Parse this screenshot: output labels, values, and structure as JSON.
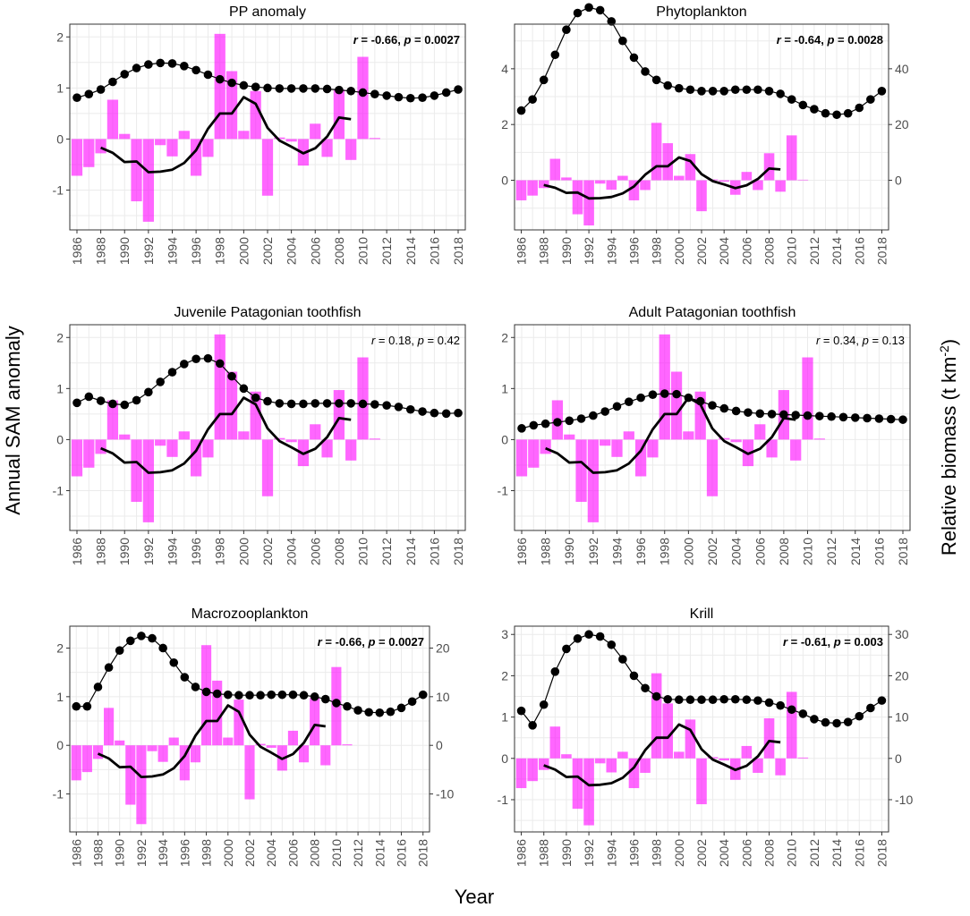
{
  "figure": {
    "y_left_label": "Annual SAM anomaly",
    "y_right_label": "Relative biomass (t km",
    "y_right_label_sup": "-2",
    "y_right_label_end": ")",
    "x_label": "Year"
  },
  "chart_data": [
    {
      "type": "bar",
      "title": "PP anomaly",
      "stat_r": "-0.66",
      "stat_p": "0.0027",
      "stat_bold": true,
      "xlabel": "Year",
      "ylabel": "Annual SAM anomaly",
      "years": [
        1986,
        1987,
        1988,
        1989,
        1990,
        1991,
        1992,
        1993,
        1994,
        1995,
        1996,
        1997,
        1998,
        1999,
        2000,
        2001,
        2002,
        2003,
        2004,
        2005,
        2006,
        2007,
        2008,
        2009,
        2010,
        2011,
        2012,
        2013,
        2014,
        2015,
        2016,
        2017,
        2018
      ],
      "xticks": [
        1986,
        1988,
        1990,
        1992,
        1994,
        1996,
        1998,
        2000,
        2002,
        2004,
        2006,
        2008,
        2010,
        2012,
        2014,
        2016,
        2018
      ],
      "sam_anomaly": [
        -0.72,
        -0.55,
        -0.28,
        0.77,
        0.1,
        -1.22,
        -1.62,
        -0.12,
        -0.34,
        0.16,
        -0.72,
        -0.35,
        2.06,
        1.33,
        0.16,
        0.94,
        -1.11,
        0.03,
        -0.05,
        -0.52,
        0.3,
        -0.35,
        0.97,
        -0.41,
        1.61,
        0.02
      ],
      "sam_smooth_years": [
        1988,
        1989,
        1990,
        1991,
        1992,
        1993,
        1994,
        1995,
        1996,
        1997,
        1998,
        1999,
        2000,
        2001,
        2002,
        2003,
        2004,
        2005,
        2006,
        2007,
        2008,
        2009
      ],
      "sam_smooth": [
        -0.17,
        -0.27,
        -0.45,
        -0.44,
        -0.65,
        -0.64,
        -0.6,
        -0.47,
        -0.22,
        0.2,
        0.5,
        0.5,
        0.82,
        0.69,
        0.22,
        -0.03,
        -0.15,
        -0.28,
        -0.18,
        0.05,
        0.42,
        0.39
      ],
      "biomass": [
        0.81,
        0.88,
        0.97,
        1.12,
        1.27,
        1.39,
        1.46,
        1.49,
        1.48,
        1.43,
        1.35,
        1.26,
        1.17,
        1.1,
        1.05,
        1.02,
        1.0,
        0.99,
        0.99,
        0.99,
        0.99,
        0.98,
        0.96,
        0.94,
        0.91,
        0.88,
        0.85,
        0.82,
        0.8,
        0.81,
        0.85,
        0.91,
        0.97
      ],
      "ylim": [
        -1.78,
        2.25
      ],
      "yticks": [
        -1,
        0,
        1,
        2
      ],
      "secondary_axis": false
    },
    {
      "type": "bar",
      "title": "Phytoplankton",
      "stat_r": "-0.64",
      "stat_p": "0.0028",
      "stat_bold": true,
      "xlabel": "Year",
      "ylabel": "Annual SAM anomaly",
      "years": [
        1986,
        1987,
        1988,
        1989,
        1990,
        1991,
        1992,
        1993,
        1994,
        1995,
        1996,
        1997,
        1998,
        1999,
        2000,
        2001,
        2002,
        2003,
        2004,
        2005,
        2006,
        2007,
        2008,
        2009,
        2010,
        2011,
        2012,
        2013,
        2014,
        2015,
        2016,
        2017,
        2018
      ],
      "xticks": [
        1986,
        1988,
        1990,
        1992,
        1994,
        1996,
        1998,
        2000,
        2002,
        2004,
        2006,
        2008,
        2010,
        2012,
        2014,
        2016,
        2018
      ],
      "sam_anomaly": [
        -0.72,
        -0.55,
        -0.28,
        0.77,
        0.1,
        -1.22,
        -1.62,
        -0.12,
        -0.34,
        0.16,
        -0.72,
        -0.35,
        2.06,
        1.33,
        0.16,
        0.94,
        -1.11,
        0.03,
        -0.05,
        -0.52,
        0.3,
        -0.35,
        0.97,
        -0.41,
        1.61,
        0.02
      ],
      "sam_smooth_years": [
        1988,
        1989,
        1990,
        1991,
        1992,
        1993,
        1994,
        1995,
        1996,
        1997,
        1998,
        1999,
        2000,
        2001,
        2002,
        2003,
        2004,
        2005,
        2006,
        2007,
        2008,
        2009
      ],
      "sam_smooth": [
        -0.17,
        -0.27,
        -0.45,
        -0.44,
        -0.65,
        -0.64,
        -0.6,
        -0.47,
        -0.22,
        0.2,
        0.5,
        0.5,
        0.82,
        0.69,
        0.22,
        -0.03,
        -0.15,
        -0.28,
        -0.18,
        0.05,
        0.42,
        0.39
      ],
      "biomass": [
        25,
        29,
        36,
        45,
        54,
        60,
        62,
        61,
        57,
        50,
        44,
        39,
        36,
        34,
        33,
        32.5,
        32,
        32,
        32,
        32.5,
        32.5,
        32.5,
        32,
        31,
        29,
        27,
        25.5,
        24,
        23.5,
        24,
        26,
        29,
        32
      ],
      "ylim": [
        -1.78,
        5.6
      ],
      "yticks": [
        0,
        2,
        4
      ],
      "secondary_axis": true,
      "y2_scale": 0.1,
      "y2_offset": 0,
      "y2_ticks": [
        0,
        20,
        40
      ]
    },
    {
      "type": "bar",
      "title": "Juvenile Patagonian toothfish",
      "stat_r": "0.18",
      "stat_p": "0.42",
      "stat_bold": false,
      "xlabel": "Year",
      "ylabel": "Annual SAM anomaly",
      "years": [
        1986,
        1987,
        1988,
        1989,
        1990,
        1991,
        1992,
        1993,
        1994,
        1995,
        1996,
        1997,
        1998,
        1999,
        2000,
        2001,
        2002,
        2003,
        2004,
        2005,
        2006,
        2007,
        2008,
        2009,
        2010,
        2011,
        2012,
        2013,
        2014,
        2015,
        2016,
        2017,
        2018
      ],
      "xticks": [
        1986,
        1988,
        1990,
        1992,
        1994,
        1996,
        1998,
        2000,
        2002,
        2004,
        2006,
        2008,
        2010,
        2012,
        2014,
        2016,
        2018
      ],
      "sam_anomaly": [
        -0.72,
        -0.55,
        -0.28,
        0.77,
        0.1,
        -1.22,
        -1.62,
        -0.12,
        -0.34,
        0.16,
        -0.72,
        -0.35,
        2.06,
        1.33,
        0.16,
        0.94,
        -1.11,
        0.03,
        -0.05,
        -0.52,
        0.3,
        -0.35,
        0.97,
        -0.41,
        1.61,
        0.02
      ],
      "sam_smooth_years": [
        1988,
        1989,
        1990,
        1991,
        1992,
        1993,
        1994,
        1995,
        1996,
        1997,
        1998,
        1999,
        2000,
        2001,
        2002,
        2003,
        2004,
        2005,
        2006,
        2007,
        2008,
        2009
      ],
      "sam_smooth": [
        -0.17,
        -0.27,
        -0.45,
        -0.44,
        -0.65,
        -0.64,
        -0.6,
        -0.47,
        -0.22,
        0.2,
        0.5,
        0.5,
        0.82,
        0.69,
        0.22,
        -0.03,
        -0.15,
        -0.28,
        -0.18,
        0.05,
        0.42,
        0.39
      ],
      "biomass": [
        0.72,
        0.84,
        0.76,
        0.7,
        0.68,
        0.77,
        0.93,
        1.13,
        1.32,
        1.48,
        1.58,
        1.59,
        1.49,
        1.24,
        1.0,
        0.82,
        0.75,
        0.71,
        0.7,
        0.7,
        0.71,
        0.71,
        0.71,
        0.71,
        0.7,
        0.69,
        0.67,
        0.64,
        0.59,
        0.55,
        0.52,
        0.51,
        0.52
      ],
      "ylim": [
        -1.78,
        2.25
      ],
      "yticks": [
        -1,
        0,
        1,
        2
      ],
      "secondary_axis": false
    },
    {
      "type": "bar",
      "title": "Adult Patagonian toothfish",
      "stat_r": "0.34",
      "stat_p": "0.13",
      "stat_bold": false,
      "xlabel": "Year",
      "ylabel": "Annual SAM anomaly",
      "years": [
        1986,
        1987,
        1988,
        1989,
        1990,
        1991,
        1992,
        1993,
        1994,
        1995,
        1996,
        1997,
        1998,
        1999,
        2000,
        2001,
        2002,
        2003,
        2004,
        2005,
        2006,
        2007,
        2008,
        2009,
        2010,
        2011,
        2012,
        2013,
        2014,
        2015,
        2016,
        2017,
        2018
      ],
      "xticks": [
        1986,
        1988,
        1990,
        1992,
        1994,
        1996,
        1998,
        2000,
        2002,
        2004,
        2006,
        2008,
        2010,
        2012,
        2014,
        2016,
        2018
      ],
      "sam_anomaly": [
        -0.72,
        -0.55,
        -0.28,
        0.77,
        0.1,
        -1.22,
        -1.62,
        -0.12,
        -0.34,
        0.16,
        -0.72,
        -0.35,
        2.06,
        1.33,
        0.16,
        0.94,
        -1.11,
        0.03,
        -0.05,
        -0.52,
        0.3,
        -0.35,
        0.97,
        -0.41,
        1.61,
        0.02
      ],
      "sam_smooth_years": [
        1988,
        1989,
        1990,
        1991,
        1992,
        1993,
        1994,
        1995,
        1996,
        1997,
        1998,
        1999,
        2000,
        2001,
        2002,
        2003,
        2004,
        2005,
        2006,
        2007,
        2008,
        2009
      ],
      "sam_smooth": [
        -0.17,
        -0.27,
        -0.45,
        -0.44,
        -0.65,
        -0.64,
        -0.6,
        -0.47,
        -0.22,
        0.2,
        0.5,
        0.5,
        0.82,
        0.69,
        0.22,
        -0.03,
        -0.15,
        -0.28,
        -0.18,
        0.05,
        0.42,
        0.39
      ],
      "biomass": [
        0.22,
        0.28,
        0.31,
        0.34,
        0.37,
        0.41,
        0.47,
        0.55,
        0.65,
        0.74,
        0.82,
        0.88,
        0.9,
        0.89,
        0.82,
        0.75,
        0.67,
        0.61,
        0.56,
        0.53,
        0.51,
        0.5,
        0.49,
        0.48,
        0.47,
        0.46,
        0.45,
        0.44,
        0.43,
        0.42,
        0.41,
        0.4,
        0.39
      ],
      "ylim": [
        -1.78,
        2.25
      ],
      "yticks": [
        -1,
        0,
        1,
        2
      ],
      "secondary_axis": false
    },
    {
      "type": "bar",
      "title": "Macrozooplankton",
      "stat_r": "-0.66",
      "stat_p": "0.0027",
      "stat_bold": true,
      "xlabel": "Year",
      "ylabel": "Annual SAM anomaly",
      "years": [
        1986,
        1987,
        1988,
        1989,
        1990,
        1991,
        1992,
        1993,
        1994,
        1995,
        1996,
        1997,
        1998,
        1999,
        2000,
        2001,
        2002,
        2003,
        2004,
        2005,
        2006,
        2007,
        2008,
        2009,
        2010,
        2011,
        2012,
        2013,
        2014,
        2015,
        2016,
        2017,
        2018
      ],
      "xticks": [
        1986,
        1988,
        1990,
        1992,
        1994,
        1996,
        1998,
        2000,
        2002,
        2004,
        2006,
        2008,
        2010,
        2012,
        2014,
        2016,
        2018
      ],
      "sam_anomaly": [
        -0.72,
        -0.55,
        -0.28,
        0.77,
        0.1,
        -1.22,
        -1.62,
        -0.12,
        -0.34,
        0.16,
        -0.72,
        -0.35,
        2.06,
        1.33,
        0.16,
        0.94,
        -1.11,
        0.03,
        -0.05,
        -0.52,
        0.3,
        -0.35,
        0.97,
        -0.41,
        1.61,
        0.02
      ],
      "sam_smooth_years": [
        1988,
        1989,
        1990,
        1991,
        1992,
        1993,
        1994,
        1995,
        1996,
        1997,
        1998,
        1999,
        2000,
        2001,
        2002,
        2003,
        2004,
        2005,
        2006,
        2007,
        2008,
        2009
      ],
      "sam_smooth": [
        -0.17,
        -0.27,
        -0.45,
        -0.44,
        -0.65,
        -0.64,
        -0.6,
        -0.47,
        -0.22,
        0.2,
        0.5,
        0.5,
        0.82,
        0.69,
        0.22,
        -0.03,
        -0.15,
        -0.28,
        -0.18,
        0.05,
        0.42,
        0.39
      ],
      "biomass": [
        8,
        8,
        12,
        16,
        19.5,
        21.5,
        22.5,
        22,
        20,
        17,
        14,
        12,
        11,
        10.6,
        10.4,
        10.3,
        10.3,
        10.3,
        10.4,
        10.4,
        10.4,
        10.3,
        10.0,
        9.5,
        8.7,
        8.0,
        7.2,
        6.8,
        6.7,
        6.9,
        7.7,
        9.0,
        10.4
      ],
      "ylim": [
        -1.78,
        2.45
      ],
      "yticks": [
        -1,
        0,
        1,
        2
      ],
      "secondary_axis": true,
      "y2_scale": 0.1,
      "y2_offset": 0,
      "y2_ticks": [
        -10,
        0,
        10,
        20
      ]
    },
    {
      "type": "bar",
      "title": "Krill",
      "stat_r": "-0.61",
      "stat_p": "0.003",
      "stat_bold": true,
      "xlabel": "Year",
      "ylabel": "Annual SAM anomaly",
      "years": [
        1986,
        1987,
        1988,
        1989,
        1990,
        1991,
        1992,
        1993,
        1994,
        1995,
        1996,
        1997,
        1998,
        1999,
        2000,
        2001,
        2002,
        2003,
        2004,
        2005,
        2006,
        2007,
        2008,
        2009,
        2010,
        2011,
        2012,
        2013,
        2014,
        2015,
        2016,
        2017,
        2018
      ],
      "xticks": [
        1986,
        1988,
        1990,
        1992,
        1994,
        1996,
        1998,
        2000,
        2002,
        2004,
        2006,
        2008,
        2010,
        2012,
        2014,
        2016,
        2018
      ],
      "sam_anomaly": [
        -0.72,
        -0.55,
        -0.28,
        0.77,
        0.1,
        -1.22,
        -1.62,
        -0.12,
        -0.34,
        0.16,
        -0.72,
        -0.35,
        2.06,
        1.33,
        0.16,
        0.94,
        -1.11,
        0.03,
        -0.05,
        -0.52,
        0.3,
        -0.35,
        0.97,
        -0.41,
        1.61,
        0.02
      ],
      "sam_smooth_years": [
        1988,
        1989,
        1990,
        1991,
        1992,
        1993,
        1994,
        1995,
        1996,
        1997,
        1998,
        1999,
        2000,
        2001,
        2002,
        2003,
        2004,
        2005,
        2006,
        2007,
        2008,
        2009
      ],
      "sam_smooth": [
        -0.17,
        -0.27,
        -0.45,
        -0.44,
        -0.65,
        -0.64,
        -0.6,
        -0.47,
        -0.22,
        0.2,
        0.5,
        0.5,
        0.82,
        0.69,
        0.22,
        -0.03,
        -0.15,
        -0.28,
        -0.18,
        0.05,
        0.42,
        0.39
      ],
      "biomass": [
        11.5,
        8,
        13,
        21,
        26.5,
        29,
        30,
        29.5,
        27.5,
        24,
        20,
        17,
        15,
        14.3,
        14.2,
        14.2,
        14.2,
        14.2,
        14.3,
        14.3,
        14.2,
        14.0,
        13.5,
        12.8,
        11.8,
        10.8,
        9.5,
        8.7,
        8.5,
        8.8,
        10.2,
        12.2,
        14.0
      ],
      "ylim": [
        -1.78,
        3.2
      ],
      "yticks": [
        -1,
        0,
        1,
        2,
        3
      ],
      "secondary_axis": true,
      "y2_scale": 0.1,
      "y2_offset": 0,
      "y2_ticks": [
        -10,
        0,
        10,
        20,
        30
      ]
    }
  ]
}
